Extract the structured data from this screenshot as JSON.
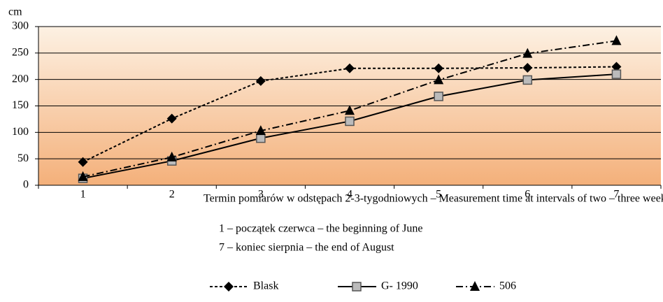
{
  "chart_data": {
    "type": "line",
    "y_label": "cm",
    "x_label": "Termin pomiarów w odstępach 2-3-tygodniowych – Measurement time at intervals of two – three weeks",
    "notes": [
      "1 – początek czerwca – the beginning of June",
      "7 – koniec sierpnia – the end of August"
    ],
    "categories": [
      "1",
      "2",
      "3",
      "4",
      "5",
      "6",
      "7"
    ],
    "series": [
      {
        "name": "Blask",
        "color": "#000000",
        "values": [
          44,
          126,
          197,
          221,
          221,
          222,
          224
        ]
      },
      {
        "name": "G- 1990",
        "color": "#000000",
        "values": [
          13,
          46,
          89,
          121,
          168,
          199,
          210
        ]
      },
      {
        "name": "506",
        "color": "#000000",
        "values": [
          16,
          53,
          103,
          141,
          199,
          249,
          273
        ]
      }
    ],
    "ylim": [
      0,
      300
    ],
    "yticks": [
      0,
      50,
      100,
      150,
      200,
      250,
      300
    ],
    "grid": true,
    "legend": "bottom"
  }
}
